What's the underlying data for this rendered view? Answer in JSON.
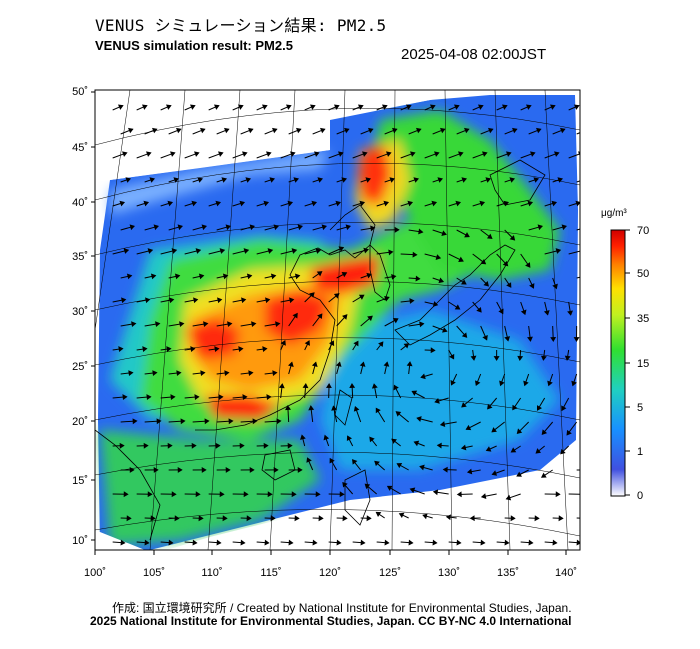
{
  "header": {
    "title_ja": "VENUS シミュレーション結果: PM2.5",
    "title_en": "VENUS simulation result: PM2.5",
    "timestamp": "2025-04-08 02:00JST"
  },
  "map": {
    "lat_ticks": [
      "50˚",
      "45˚",
      "40˚",
      "35˚",
      "30˚",
      "25˚",
      "20˚",
      "15˚",
      "10˚"
    ],
    "lon_ticks": [
      "100˚",
      "105˚",
      "110˚",
      "115˚",
      "120˚",
      "125˚",
      "130˚",
      "135˚",
      "140˚"
    ],
    "lat_range": [
      9,
      51
    ],
    "lon_range": [
      100,
      142
    ]
  },
  "colorbar": {
    "unit": "μg/m³",
    "tick_labels": [
      "70",
      "50",
      "35",
      "15",
      "5",
      "1",
      "0"
    ],
    "colors": [
      "#ffffff",
      "#4050e0",
      "#1890ff",
      "#20d0c0",
      "#30e030",
      "#c0f020",
      "#ffe000",
      "#ff8000",
      "#ff2000",
      "#d00000"
    ]
  },
  "footer": {
    "credit": "作成: 国立環境研究所 / Created by National Institute for Environmental Studies, Japan.",
    "license": "2025 National Institute for Environmental Studies, Japan. CC BY-NC 4.0 International"
  },
  "style": {
    "ocean_color": "#ffffff",
    "land_outline": "#000000",
    "graticule": "#000000"
  }
}
